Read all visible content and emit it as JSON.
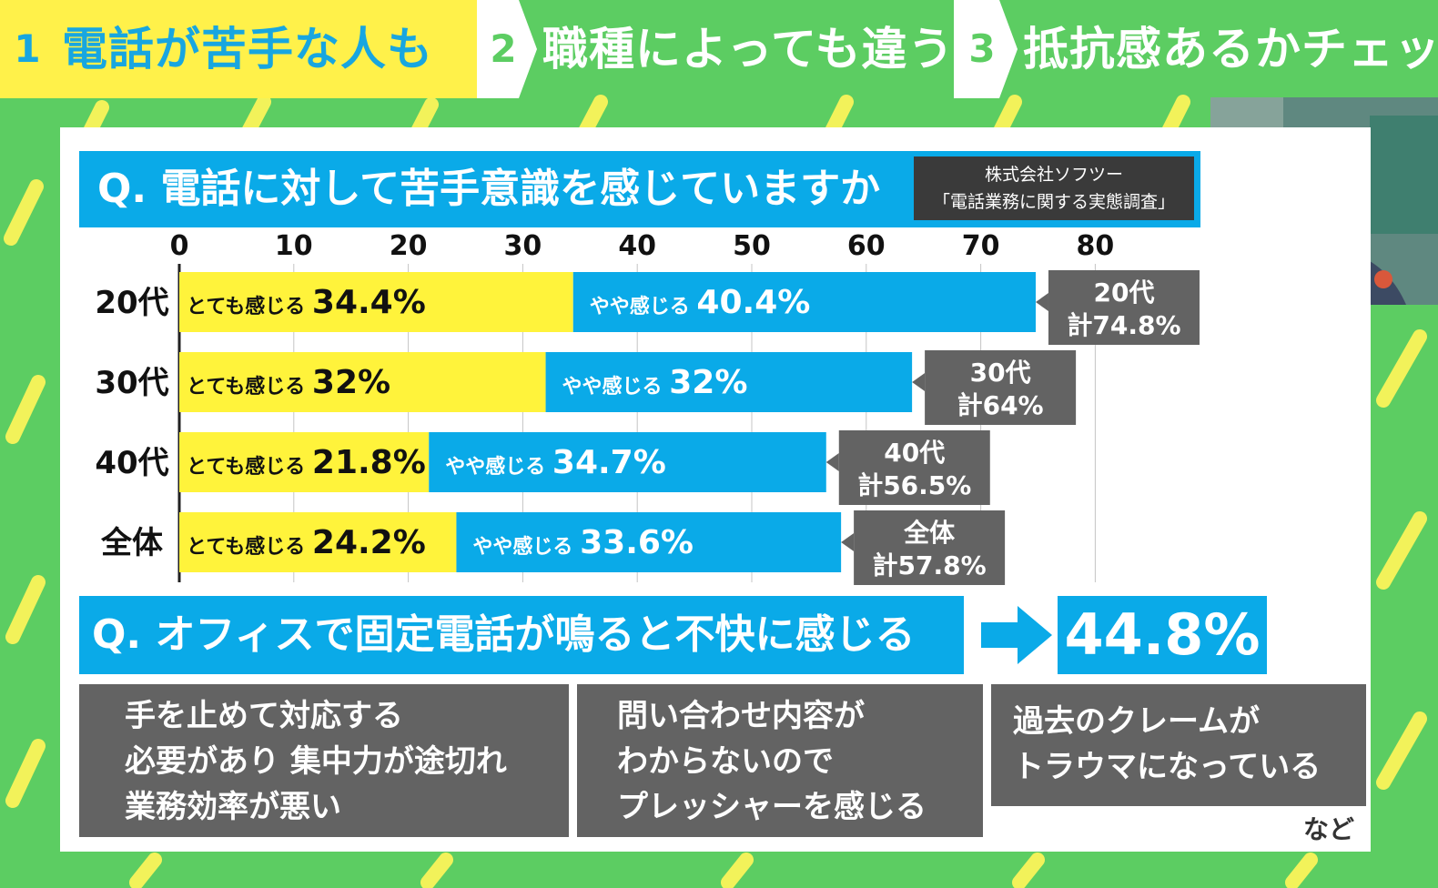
{
  "tabs": [
    {
      "num": "1",
      "label": "電話が苦手な人も"
    },
    {
      "num": "2",
      "label": "職種によっても違う？"
    },
    {
      "num": "3",
      "label": "抵抗感あるかチェック"
    }
  ],
  "question1": "Q. 電話に対して苦手意識を感じていますか",
  "source": {
    "line1": "株式会社ソフツー",
    "line2": "「電話業務に関する実態調査」"
  },
  "chart_data": {
    "type": "bar",
    "orientation": "horizontal",
    "stacked": true,
    "title": "",
    "xlabel": "",
    "ylabel": "",
    "xlim": [
      0,
      80
    ],
    "ticks": [
      "0",
      "10",
      "20",
      "30",
      "40",
      "50",
      "60",
      "70",
      "80"
    ],
    "grid": true,
    "categories": [
      "20代",
      "30代",
      "40代",
      "全体"
    ],
    "series": [
      {
        "name": "とても感じる",
        "color": "#fff33b",
        "values": [
          34.4,
          32,
          21.8,
          24.2
        ],
        "labels": [
          "34.4%",
          "32%",
          "21.8%",
          "24.2%"
        ]
      },
      {
        "name": "やや感じる",
        "color": "#0aaae8",
        "values": [
          40.4,
          32,
          34.7,
          33.6
        ],
        "labels": [
          "40.4%",
          "32%",
          "34.7%",
          "33.6%"
        ]
      }
    ],
    "totals": [
      {
        "line1": "20代",
        "line2": "計74.8%",
        "value": 74.8
      },
      {
        "line1": "30代",
        "line2": "計64%",
        "value": 64
      },
      {
        "line1": "40代",
        "line2": "計56.5%",
        "value": 56.5
      },
      {
        "line1": "全体",
        "line2": "計57.8%",
        "value": 57.8
      }
    ]
  },
  "question2": "Q. オフィスで固定電話が鳴ると不快に感じる",
  "question2_result": "44.8%",
  "reasons": [
    [
      "手を止めて対応する",
      "必要があり 集中力が途切れ",
      "業務効率が悪い"
    ],
    [
      "問い合わせ内容が",
      "わからないので",
      "プレッシャーを感じる"
    ],
    [
      "過去のクレームが",
      "トラウマになっている"
    ]
  ],
  "footnote": "など",
  "colors": {
    "green": "#5ccd62",
    "yellow": "#fff33b",
    "blue": "#0aaae8",
    "gray": "#636363"
  }
}
